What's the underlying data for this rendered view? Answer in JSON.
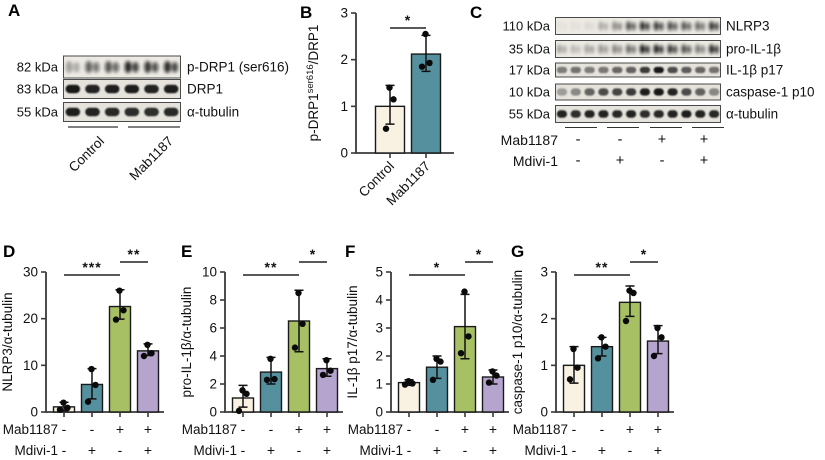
{
  "colors": {
    "cream": "#f9f2e2",
    "teal": "#55909f",
    "green": "#a6c063",
    "purple": "#b4a4ce",
    "axis": "#3a3a3a",
    "band": "#101010",
    "blot_bg": "#e6e3dd",
    "blot_bg_fuzzy": "#edeae4",
    "blot_border": "#4a4a4a"
  },
  "panels": {
    "a": {
      "label": "A",
      "rows": [
        {
          "kda": "82 kDa",
          "protein": "p-DRP1 (ser616)",
          "fuzzy": true,
          "lanes": [
            0.3,
            0.62,
            0.68,
            0.88,
            0.8,
            0.85
          ]
        },
        {
          "kda": "83 kDa",
          "protein": "DRP1",
          "fuzzy": false,
          "lanes": [
            0.95,
            0.9,
            0.92,
            0.93,
            0.9,
            0.92
          ]
        },
        {
          "kda": "55 kDa",
          "protein": "α-tubulin",
          "fuzzy": false,
          "lanes": [
            0.92,
            0.9,
            0.88,
            0.86,
            0.85,
            0.88
          ]
        }
      ],
      "groups": [
        "Control",
        "Mab1187"
      ]
    },
    "b": {
      "label": "B"
    },
    "c": {
      "label": "C",
      "rows": [
        {
          "kda": "110 kDa",
          "protein": "NLRP3",
          "fuzzy": true,
          "lanes": [
            0.04,
            0.05,
            0.08,
            0.28,
            0.45,
            0.72,
            0.88,
            0.82,
            0.75,
            0.7,
            0.62,
            0.85
          ]
        },
        {
          "kda": "35 kDa",
          "protein": "pro-IL-1β",
          "fuzzy": true,
          "lanes": [
            0.3,
            0.22,
            0.35,
            0.42,
            0.5,
            0.62,
            0.97,
            0.95,
            0.85,
            0.75,
            0.55,
            0.92
          ]
        },
        {
          "kda": "17 kDa",
          "protein": "IL-1β p17",
          "fuzzy": false,
          "lanes": [
            0.5,
            0.55,
            0.5,
            0.52,
            0.6,
            0.62,
            0.8,
            0.95,
            0.72,
            0.65,
            0.6,
            0.55
          ]
        },
        {
          "kda": "10 kDa",
          "protein": "caspase-1 p10",
          "fuzzy": false,
          "lanes": [
            0.35,
            0.4,
            0.62,
            0.72,
            0.75,
            0.8,
            0.92,
            0.95,
            0.9,
            0.72,
            0.62,
            0.45
          ]
        },
        {
          "kda": "55 kDa",
          "protein": "α-tubulin",
          "fuzzy": false,
          "lanes": [
            0.9,
            0.85,
            0.9,
            0.9,
            0.88,
            0.9,
            0.85,
            0.88,
            0.9,
            0.92,
            0.9,
            0.88
          ]
        }
      ],
      "treatments": [
        {
          "name": "Mab1187",
          "values": [
            "-",
            "-",
            "+",
            "+"
          ]
        },
        {
          "name": "Mdivi-1",
          "values": [
            "-",
            "+",
            "-",
            "+"
          ]
        }
      ]
    },
    "d": {
      "label": "D"
    },
    "e": {
      "label": "E"
    },
    "f": {
      "label": "F"
    },
    "g": {
      "label": "G"
    }
  },
  "chart_data": [
    {
      "id": "B",
      "type": "bar",
      "title": "",
      "xlabel": "",
      "ylabel_segments": [
        {
          "t": "p-DRP1"
        },
        {
          "t": "ser616",
          "sup": true
        },
        {
          "t": "/DRP1"
        }
      ],
      "categories": [
        "Control",
        "Mab1187"
      ],
      "values": [
        1.0,
        2.12
      ],
      "err_lo": [
        0.62,
        1.75
      ],
      "err_hi": [
        1.45,
        2.52
      ],
      "dots": [
        [
          0.52,
          1.15,
          1.4
        ],
        [
          1.85,
          1.93,
          2.55
        ]
      ],
      "bar_colors": [
        "cream",
        "teal"
      ],
      "ylim": [
        0,
        3
      ],
      "yticks": [
        0,
        1,
        2,
        3
      ],
      "sig": [
        {
          "from": 0,
          "to": 1,
          "label": "*"
        }
      ]
    },
    {
      "id": "D",
      "type": "bar",
      "title": "",
      "xlabel": "",
      "ylabel_segments": [
        {
          "t": "NLRP3/α-tubulin"
        }
      ],
      "values": [
        1.1,
        5.9,
        22.6,
        13.1
      ],
      "err_lo": [
        0.3,
        2.8,
        19.9,
        12.1
      ],
      "err_hi": [
        2.1,
        9.3,
        26.2,
        14.6
      ],
      "dots": [
        [
          0.5,
          0.9,
          2.0
        ],
        [
          2.2,
          5.8,
          9.2
        ],
        [
          19.8,
          21.8,
          26.0
        ],
        [
          12.0,
          12.6,
          14.4
        ]
      ],
      "bar_colors": [
        "cream",
        "teal",
        "green",
        "purple"
      ],
      "ylim": [
        0,
        30
      ],
      "yticks": [
        0,
        10,
        20,
        30
      ],
      "sig": [
        {
          "from": 0,
          "to": 2,
          "label": "***"
        },
        {
          "from": 2,
          "to": 3,
          "label": "**"
        }
      ],
      "treatment_rows": [
        {
          "name": "Mab1187",
          "values": [
            "-",
            "-",
            "+",
            "+"
          ]
        },
        {
          "name": "Mdivi-1",
          "values": [
            "-",
            "+",
            "-",
            "+"
          ]
        }
      ]
    },
    {
      "id": "E",
      "type": "bar",
      "title": "",
      "xlabel": "",
      "ylabel_segments": [
        {
          "t": "pro-IL-1β/α-tubulin"
        }
      ],
      "values": [
        1.0,
        2.85,
        6.5,
        3.1
      ],
      "err_lo": [
        0.35,
        2.0,
        4.3,
        2.55
      ],
      "err_hi": [
        1.9,
        3.9,
        8.7,
        3.8
      ],
      "dots": [
        [
          0.08,
          1.3,
          1.55
        ],
        [
          2.3,
          2.35,
          3.8
        ],
        [
          4.6,
          6.3,
          8.5
        ],
        [
          2.65,
          2.95,
          3.7
        ]
      ],
      "bar_colors": [
        "cream",
        "teal",
        "green",
        "purple"
      ],
      "ylim": [
        0,
        10
      ],
      "yticks": [
        0,
        2,
        4,
        6,
        8,
        10
      ],
      "sig": [
        {
          "from": 0,
          "to": 2,
          "label": "**"
        },
        {
          "from": 2,
          "to": 3,
          "label": "*"
        }
      ],
      "treatment_rows": [
        {
          "name": "Mab1187",
          "values": [
            "-",
            "-",
            "+",
            "+"
          ]
        },
        {
          "name": "Mdivi-1",
          "values": [
            "-",
            "+",
            "-",
            "+"
          ]
        }
      ]
    },
    {
      "id": "F",
      "type": "bar",
      "title": "",
      "xlabel": "",
      "ylabel_segments": [
        {
          "t": "IL-1β p17/α-tubulin"
        }
      ],
      "values": [
        1.05,
        1.6,
        3.05,
        1.25
      ],
      "err_lo": [
        0.95,
        1.2,
        1.9,
        1.0
      ],
      "err_hi": [
        1.15,
        2.0,
        4.2,
        1.5
      ],
      "dots": [
        [
          0.98,
          1.02,
          1.1
        ],
        [
          1.15,
          1.8,
          1.9
        ],
        [
          2.1,
          2.7,
          4.3
        ],
        [
          1.05,
          1.3,
          1.45
        ]
      ],
      "bar_colors": [
        "cream",
        "teal",
        "green",
        "purple"
      ],
      "ylim": [
        0,
        5
      ],
      "yticks": [
        0,
        1,
        2,
        3,
        4,
        5
      ],
      "sig": [
        {
          "from": 0,
          "to": 2,
          "label": "*"
        },
        {
          "from": 2,
          "to": 3,
          "label": "*"
        }
      ],
      "treatment_rows": [
        {
          "name": "Mab1187",
          "values": [
            "-",
            "-",
            "+",
            "+"
          ]
        },
        {
          "name": "Mdivi-1",
          "values": [
            "-",
            "+",
            "-",
            "+"
          ]
        }
      ]
    },
    {
      "id": "G",
      "type": "bar",
      "title": "",
      "xlabel": "",
      "ylabel_segments": [
        {
          "t": "caspase-1 p10/α-tubulin"
        }
      ],
      "values": [
        1.0,
        1.4,
        2.35,
        1.52
      ],
      "err_lo": [
        0.62,
        1.2,
        2.05,
        1.25
      ],
      "err_hi": [
        1.4,
        1.6,
        2.7,
        1.85
      ],
      "dots": [
        [
          0.7,
          0.95,
          1.35
        ],
        [
          1.15,
          1.4,
          1.6
        ],
        [
          1.95,
          2.55,
          2.6
        ],
        [
          1.2,
          1.6,
          1.8
        ]
      ],
      "bar_colors": [
        "cream",
        "teal",
        "green",
        "purple"
      ],
      "ylim": [
        0,
        3
      ],
      "yticks": [
        0,
        1,
        2,
        3
      ],
      "sig": [
        {
          "from": 0,
          "to": 2,
          "label": "**"
        },
        {
          "from": 2,
          "to": 3,
          "label": "*"
        }
      ],
      "treatment_rows": [
        {
          "name": "Mab1187",
          "values": [
            "-",
            "-",
            "+",
            "+"
          ]
        },
        {
          "name": "Mdivi-1",
          "values": [
            "-",
            "+",
            "-",
            "+"
          ]
        }
      ]
    }
  ]
}
